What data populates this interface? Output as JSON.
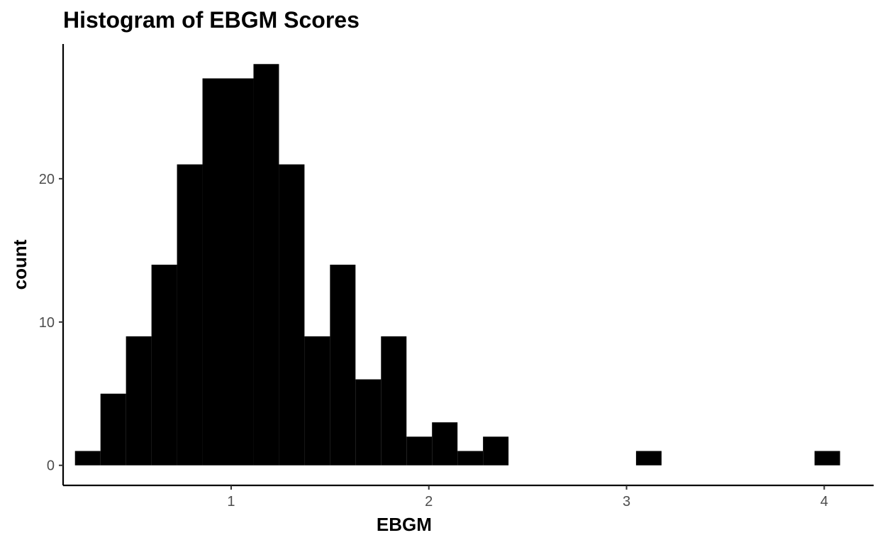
{
  "chart_data": {
    "type": "histogram",
    "title": "Histogram of EBGM Scores",
    "xlabel": "EBGM",
    "ylabel": "count",
    "bar_color": "#000000",
    "background": "#ffffff",
    "grid": false,
    "legend": "none",
    "binwidth": 0.129,
    "xlim": [
      0.15,
      4.25
    ],
    "ylim": [
      -1.4,
      29.4
    ],
    "x_ticks": [
      1,
      2,
      3,
      4
    ],
    "y_ticks": [
      0,
      10,
      20
    ],
    "bins": [
      {
        "x_start": 0.21,
        "x_end": 0.339,
        "count": 1
      },
      {
        "x_start": 0.339,
        "x_end": 0.468,
        "count": 5
      },
      {
        "x_start": 0.468,
        "x_end": 0.597,
        "count": 9
      },
      {
        "x_start": 0.597,
        "x_end": 0.726,
        "count": 14
      },
      {
        "x_start": 0.726,
        "x_end": 0.855,
        "count": 21
      },
      {
        "x_start": 0.855,
        "x_end": 0.984,
        "count": 27
      },
      {
        "x_start": 0.984,
        "x_end": 1.113,
        "count": 27
      },
      {
        "x_start": 1.113,
        "x_end": 1.242,
        "count": 28
      },
      {
        "x_start": 1.242,
        "x_end": 1.371,
        "count": 21
      },
      {
        "x_start": 1.371,
        "x_end": 1.5,
        "count": 9
      },
      {
        "x_start": 1.5,
        "x_end": 1.629,
        "count": 14
      },
      {
        "x_start": 1.629,
        "x_end": 1.758,
        "count": 6
      },
      {
        "x_start": 1.758,
        "x_end": 1.887,
        "count": 9
      },
      {
        "x_start": 1.887,
        "x_end": 2.016,
        "count": 2
      },
      {
        "x_start": 2.016,
        "x_end": 2.145,
        "count": 3
      },
      {
        "x_start": 2.145,
        "x_end": 2.274,
        "count": 1
      },
      {
        "x_start": 2.274,
        "x_end": 2.403,
        "count": 2
      },
      {
        "x_start": 3.048,
        "x_end": 3.177,
        "count": 1
      },
      {
        "x_start": 3.951,
        "x_end": 4.08,
        "count": 1
      }
    ]
  }
}
